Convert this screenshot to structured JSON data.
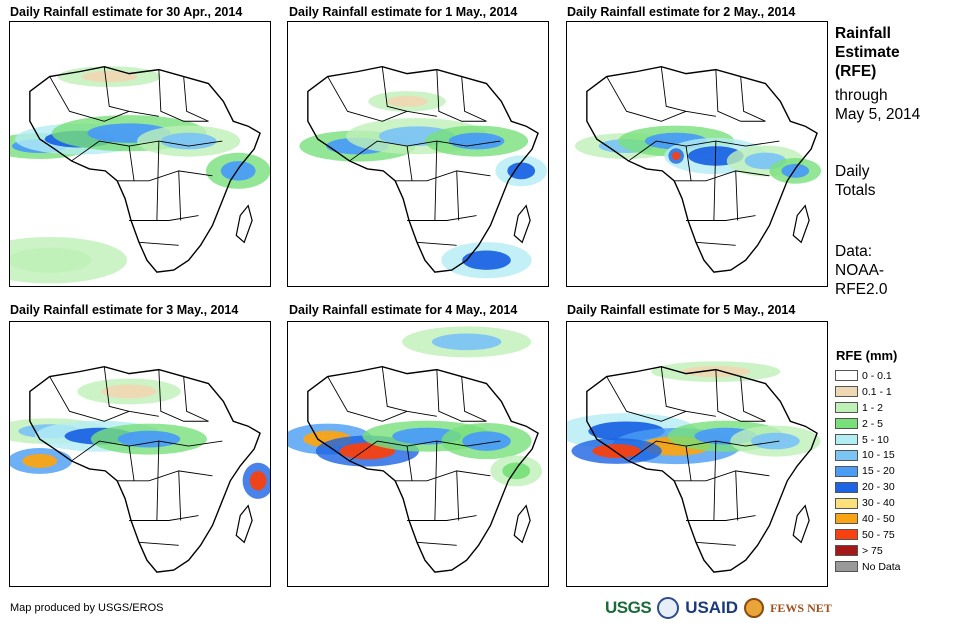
{
  "panels": [
    {
      "title": "Daily Rainfall estimate for 30 Apr., 2014"
    },
    {
      "title": "Daily Rainfall estimate for 1 May., 2014"
    },
    {
      "title": "Daily Rainfall estimate for 2 May., 2014"
    },
    {
      "title": "Daily Rainfall estimate for 3 May., 2014"
    },
    {
      "title": "Daily Rainfall estimate for 4 May., 2014"
    },
    {
      "title": "Daily Rainfall estimate for 5 May., 2014"
    }
  ],
  "sidebar": {
    "title_line1": "Rainfall",
    "title_line2": "Estimate",
    "title_line3": "(RFE)",
    "through_line1": "through",
    "through_line2": "May 5, 2014",
    "daily_line1": "Daily",
    "daily_line2": "Totals",
    "data_line1": "Data:",
    "data_line2": "NOAA-",
    "data_line3": "RFE2.0"
  },
  "legend": {
    "title": "RFE (mm)",
    "items": [
      {
        "label": "0 - 0.1",
        "color": "#ffffff"
      },
      {
        "label": "0.1 - 1",
        "color": "#eed8b4"
      },
      {
        "label": "1 - 2",
        "color": "#bff0b8"
      },
      {
        "label": "2 - 5",
        "color": "#78e07a"
      },
      {
        "label": "5 - 10",
        "color": "#b4ecf4"
      },
      {
        "label": "10 - 15",
        "color": "#7cc4f4"
      },
      {
        "label": "15 - 20",
        "color": "#4a9cf4"
      },
      {
        "label": "20 - 30",
        "color": "#1c64e4"
      },
      {
        "label": "30 - 40",
        "color": "#fce07c"
      },
      {
        "label": "40 - 50",
        "color": "#f8a414"
      },
      {
        "label": "50 - 75",
        "color": "#f84010"
      },
      {
        "label": "> 75",
        "color": "#a41818"
      },
      {
        "label": "No Data",
        "color": "#999999"
      }
    ]
  },
  "footer": {
    "credit": "Map produced by USGS/EROS",
    "logo_usgs": "USGS",
    "logo_usaid": "USAID",
    "logo_fews": "FEWS NET"
  }
}
